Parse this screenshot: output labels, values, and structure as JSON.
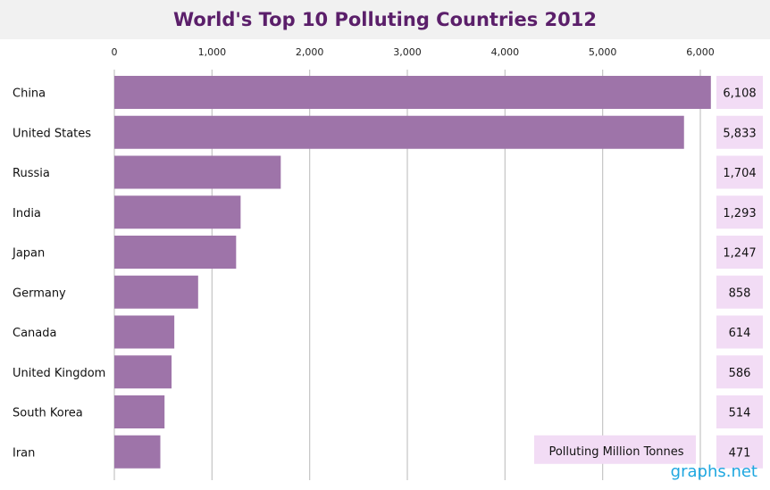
{
  "chart_data": {
    "type": "bar",
    "orientation": "horizontal",
    "title": "World's Top 10 Polluting Countries 2012",
    "categories": [
      "China",
      "United States",
      "Russia",
      "India",
      "Japan",
      "Germany",
      "Canada",
      "United Kingdom",
      "South Korea",
      "Iran"
    ],
    "values": [
      6108,
      5833,
      1704,
      1293,
      1247,
      858,
      614,
      586,
      514,
      471
    ],
    "value_labels": [
      "6,108",
      "5,833",
      "1,704",
      "1,293",
      "1,247",
      "858",
      "614",
      "586",
      "514",
      "471"
    ],
    "xlim": [
      0,
      6000
    ],
    "ticks": [
      0,
      1000,
      2000,
      3000,
      4000,
      5000,
      6000
    ],
    "tick_labels": [
      "0",
      "1,000",
      "2,000",
      "3,000",
      "4,000",
      "5,000",
      "6,000"
    ],
    "axis_position": "top",
    "grid": true,
    "annotation": "Polluting Million Tonnes",
    "colors": {
      "bar": "#9e74a9",
      "label_box": "#f2dcf5",
      "grid": "#c4c4c4",
      "title": "#5b1f6a",
      "title_bg": "#f1f1f1"
    }
  },
  "watermark": "graphs.net"
}
